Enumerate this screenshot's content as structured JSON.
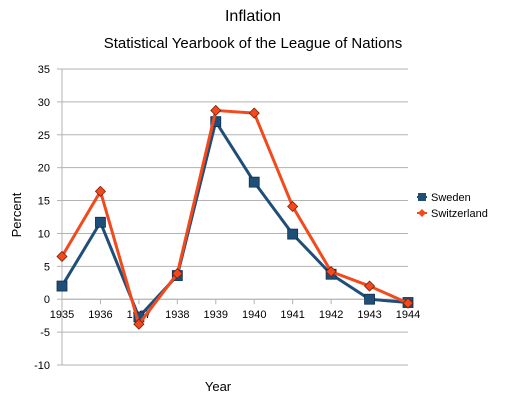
{
  "chart_data": {
    "type": "line",
    "title": "Inflation",
    "subtitle": "Statistical Yearbook of the League of Nations",
    "xlabel": "Year",
    "ylabel": "Percent",
    "x": [
      1935,
      1936,
      1937,
      1938,
      1939,
      1940,
      1941,
      1942,
      1943,
      1944
    ],
    "ylim": [
      -10,
      35
    ],
    "yticks": [
      -10,
      -5,
      0,
      5,
      10,
      15,
      20,
      25,
      30,
      35
    ],
    "grid": "horizontal",
    "legend_position": "right",
    "series": [
      {
        "name": "Sweden",
        "color": "#1f4e79",
        "marker": "square",
        "values": [
          2.0,
          11.7,
          -2.7,
          3.6,
          27.0,
          17.8,
          9.9,
          3.8,
          0.0,
          -0.5
        ]
      },
      {
        "name": "Switzerland",
        "color": "#f24a1c",
        "marker": "diamond",
        "values": [
          6.5,
          16.4,
          -3.8,
          3.9,
          28.7,
          28.3,
          14.1,
          4.2,
          2.0,
          -0.6
        ]
      }
    ]
  }
}
